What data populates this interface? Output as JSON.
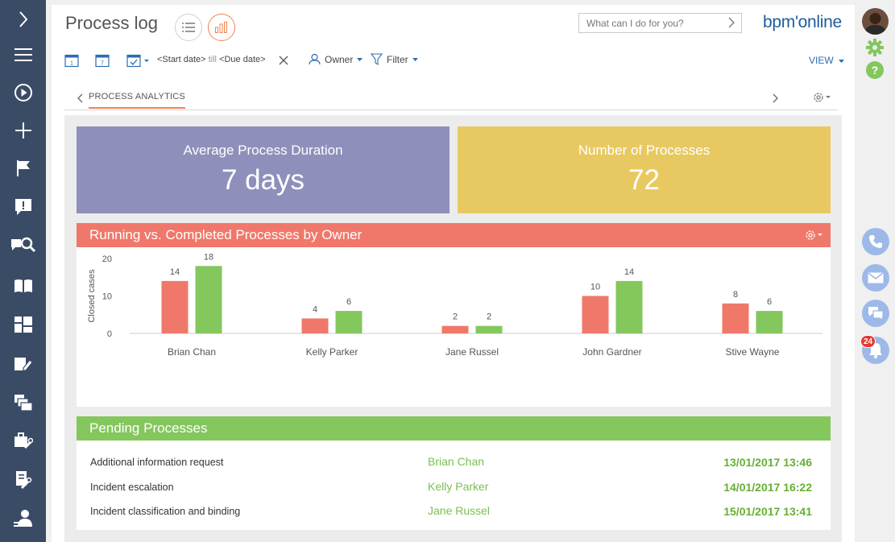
{
  "header": {
    "title": "Process log",
    "search_placeholder": "What can I do for you?",
    "logo_text": "bpm'online"
  },
  "filters": {
    "start_date": "<Start date>",
    "till": "till",
    "due_date": "<Due date>",
    "owner": "Owner",
    "filter": "Filter",
    "view": "VIEW"
  },
  "tabs": {
    "active": "PROCESS ANALYTICS"
  },
  "kpis": [
    {
      "label": "Average Process Duration",
      "value": "7 days",
      "color": "#8f8fbb"
    },
    {
      "label": "Number of Processes",
      "value": "72",
      "color": "#e8c961"
    }
  ],
  "chart_section": {
    "title": "Running vs. Completed Processes by Owner"
  },
  "chart_data": {
    "type": "bar",
    "ylabel": "Closed cases",
    "ylim": [
      0,
      20
    ],
    "yticks": [
      "0",
      "10",
      "20"
    ],
    "categories": [
      "Brian Chan",
      "Kelly Parker",
      "Jane Russel",
      "John Gardner",
      "Stive Wayne"
    ],
    "series": [
      {
        "values": [
          14,
          4,
          2,
          10,
          8
        ],
        "color": "#f0786a"
      },
      {
        "values": [
          18,
          6,
          2,
          14,
          6
        ],
        "color": "#83c75d"
      }
    ]
  },
  "pending": {
    "title": "Pending Processes",
    "rows": [
      {
        "name": "Additional information request",
        "owner": "Brian Chan",
        "date": "13/01/2017 13:46"
      },
      {
        "name": "Incident escalation",
        "owner": "Kelly Parker",
        "date": "14/01/2017 16:22"
      },
      {
        "name": "Incident classification and binding",
        "owner": "Jane Russel",
        "date": "15/01/2017 13:41"
      }
    ]
  },
  "rail": {
    "notification_count": "24"
  },
  "colors": {
    "sidebar": "#3a4b66",
    "accent_orange": "#f0844e",
    "accent_blue": "#2b6db3",
    "green": "#83c75d",
    "salmon": "#f0786a"
  }
}
